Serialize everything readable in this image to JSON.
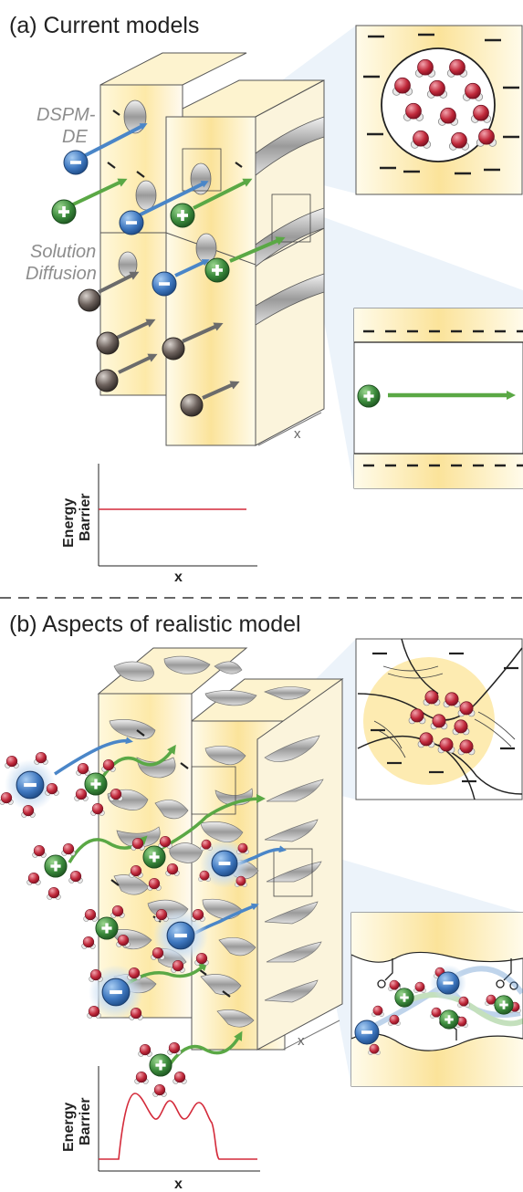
{
  "panel_a": {
    "title": "(a) Current models",
    "label_dspm_line1": "DSPM-",
    "label_dspm_line2": "DE",
    "label_solution": "Solution",
    "label_diffusion": "Diffusion",
    "membrane_axis": "x",
    "energy_ylabel_line1": "Energy",
    "energy_ylabel_line2": "Barrier",
    "energy_xlabel": "x"
  },
  "panel_b": {
    "title": "(b) Aspects of realistic model",
    "membrane_axis": "x",
    "energy_ylabel_line1": "Energy",
    "energy_ylabel_line2": "Barrier",
    "energy_xlabel": "x"
  },
  "colors": {
    "membrane_yellow": "#fbe9a8",
    "anion_blue": "#3f78c0",
    "cation_green": "#3b8a3c",
    "neutral_gray": "#5e5e5e",
    "water_red": "#c0283a",
    "arrow_blue": "#4a86c8",
    "arrow_green": "#5aa845",
    "energy_line": "#d42a3a"
  },
  "icons": {
    "anion": "minus-sign",
    "cation": "plus-sign"
  }
}
